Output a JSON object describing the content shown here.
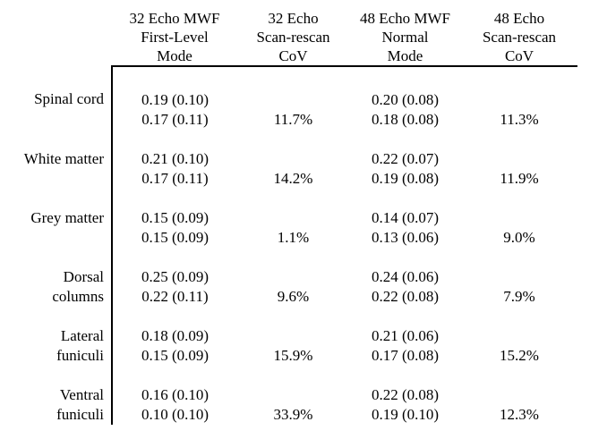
{
  "colors": {
    "text": "#000000",
    "background": "#ffffff",
    "rule": "#000000"
  },
  "table": {
    "columns": [
      {
        "id": "mwf32",
        "lines": [
          "32 Echo MWF",
          "First-Level",
          "Mode"
        ]
      },
      {
        "id": "cov32",
        "lines": [
          "32 Echo",
          "Scan-rescan",
          "CoV"
        ]
      },
      {
        "id": "mwf48",
        "lines": [
          "48 Echo MWF",
          "Normal",
          "Mode"
        ]
      },
      {
        "id": "cov48",
        "lines": [
          "48 Echo",
          "Scan-rescan",
          "CoV"
        ]
      }
    ],
    "rows": [
      {
        "region": "Spinal cord",
        "label_lines": [
          "Spinal cord",
          ""
        ],
        "mwf32": [
          "0.19 (0.10)",
          "0.17 (0.11)"
        ],
        "cov32": "11.7%",
        "mwf48": [
          "0.20 (0.08)",
          "0.18 (0.08)"
        ],
        "cov48": "11.3%"
      },
      {
        "region": "White matter",
        "label_lines": [
          "White matter",
          ""
        ],
        "mwf32": [
          "0.21 (0.10)",
          "0.17 (0.11)"
        ],
        "cov32": "14.2%",
        "mwf48": [
          "0.22 (0.07)",
          "0.19 (0.08)"
        ],
        "cov48": "11.9%"
      },
      {
        "region": "Grey matter",
        "label_lines": [
          "Grey matter",
          ""
        ],
        "mwf32": [
          "0.15 (0.09)",
          "0.15 (0.09)"
        ],
        "cov32": "1.1%",
        "mwf48": [
          "0.14 (0.07)",
          "0.13 (0.06)"
        ],
        "cov48": "9.0%"
      },
      {
        "region": "Dorsal columns",
        "label_lines": [
          "Dorsal",
          "columns"
        ],
        "mwf32": [
          "0.25 (0.09)",
          "0.22 (0.11)"
        ],
        "cov32": "9.6%",
        "mwf48": [
          "0.24 (0.06)",
          "0.22 (0.08)"
        ],
        "cov48": "7.9%"
      },
      {
        "region": "Lateral funiculi",
        "label_lines": [
          "Lateral",
          "funiculi"
        ],
        "mwf32": [
          "0.18 (0.09)",
          "0.15 (0.09)"
        ],
        "cov32": "15.9%",
        "mwf48": [
          "0.21 (0.06)",
          "0.17 (0.08)"
        ],
        "cov48": "15.2%"
      },
      {
        "region": "Ventral funiculi",
        "label_lines": [
          "Ventral",
          "funiculi"
        ],
        "mwf32": [
          "0.16 (0.10)",
          "0.10 (0.10)"
        ],
        "cov32": "33.9%",
        "mwf48": [
          "0.22 (0.08)",
          "0.19 (0.10)"
        ],
        "cov48": "12.3%"
      }
    ]
  }
}
